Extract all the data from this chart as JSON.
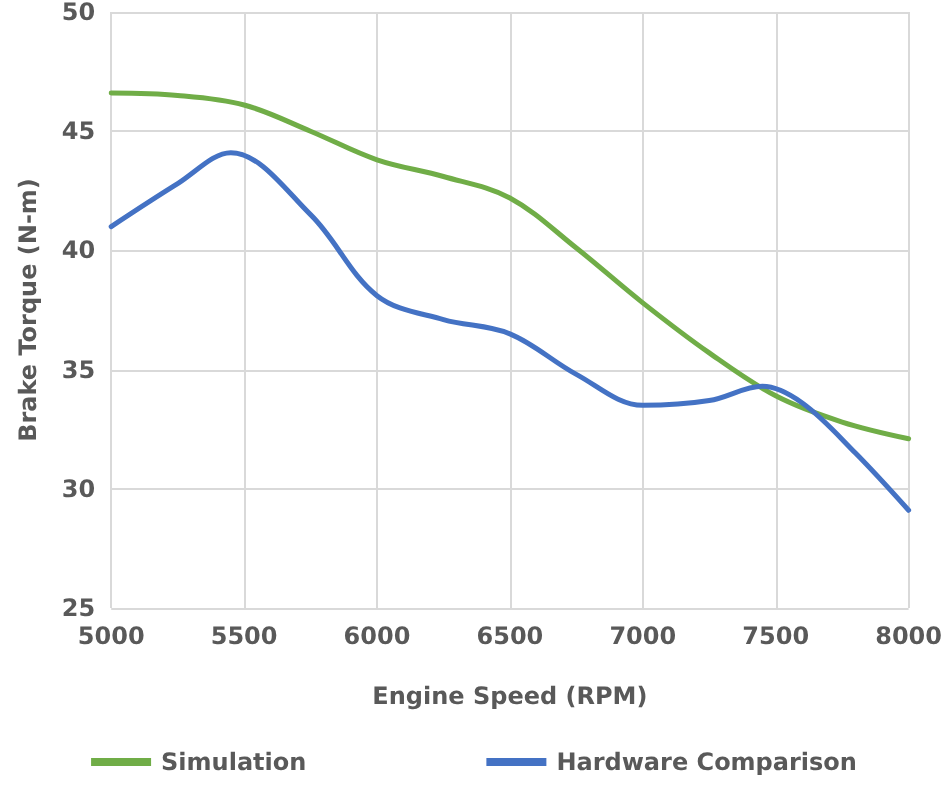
{
  "chart_data": {
    "type": "line",
    "xlabel": "Engine Speed (RPM)",
    "ylabel": "Brake Torque (N-m)",
    "xlim": [
      5000,
      8000
    ],
    "xticks": [
      5000,
      5500,
      6000,
      6500,
      7000,
      7500,
      8000
    ],
    "ylim": [
      25,
      50
    ],
    "yticks": [
      25,
      30,
      35,
      40,
      45,
      50
    ],
    "grid": true,
    "legend": "bottom",
    "marker": "none",
    "line_style": "solid",
    "series": [
      {
        "name": "Simulation",
        "color": "#70ad47",
        "x": [
          5000,
          5250,
          5500,
          5750,
          6000,
          6250,
          6500,
          6750,
          7000,
          7250,
          7500,
          7750,
          8000
        ],
        "values": [
          46.6,
          46.5,
          46.1,
          45,
          43.8,
          43.1,
          42.2,
          40.1,
          37.8,
          35.7,
          33.9,
          32.8,
          32.1
        ]
      },
      {
        "name": "Hardware Comparison",
        "color": "#4472c4",
        "x": [
          5000,
          5250,
          5450,
          5750,
          6000,
          6250,
          6500,
          6750,
          7000,
          7250,
          7450,
          7600,
          7800,
          8000
        ],
        "values": [
          41,
          42.8,
          44.1,
          41.5,
          38.1,
          37.1,
          36.5,
          34.8,
          33.5,
          33.7,
          34.3,
          33.6,
          31.5,
          29.1
        ]
      }
    ]
  }
}
